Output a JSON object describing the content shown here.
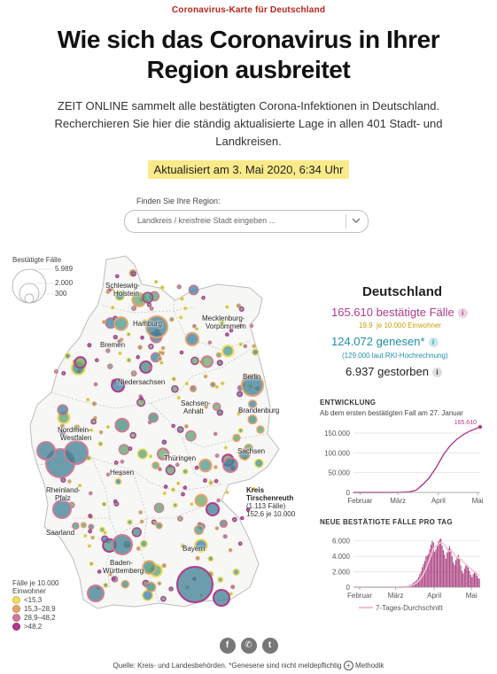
{
  "header": {
    "kicker": "Coronavirus-Karte für Deutschland",
    "headline_line1": "Wie sich das Coronavirus in Ihrer",
    "headline_line2": "Region ausbreitet",
    "lede_line1": "ZEIT ONLINE sammelt alle bestätigten Corona-Infektionen in Deutschland.",
    "lede_line2": "Recherchieren Sie hier die ständig aktualisierte Lage in allen 401 Stadt- und",
    "lede_line3": "Landkreisen.",
    "updated": "Aktualisiert am 3. Mai 2020, 6:34 Uhr"
  },
  "search": {
    "label": "Finden Sie Ihre Region:",
    "placeholder": "Landkreis / kreisfreie Stadt eingeben ..."
  },
  "size_legend": {
    "title": "Bestätigte Fälle",
    "values": [
      "5.989",
      "2.000",
      "300"
    ]
  },
  "color_legend": {
    "title_line1": "Fälle je 10.000",
    "title_line2": "Einwohner",
    "items": [
      {
        "label": "<15,3",
        "color": "#f4dc5c"
      },
      {
        "label": "15,3–28,9",
        "color": "#e8a36a"
      },
      {
        "label": "28,9–48,2",
        "color": "#d07a94"
      },
      {
        "label": ">48,2",
        "color": "#b03a8c"
      }
    ]
  },
  "map": {
    "labels": [
      {
        "id": "sh1",
        "text": "Schleswig-"
      },
      {
        "id": "sh2",
        "text": "Holstein"
      },
      {
        "id": "hh",
        "text": "Hamburg"
      },
      {
        "id": "mv1",
        "text": "Mecklenburg-"
      },
      {
        "id": "mv2",
        "text": "Vorpommern"
      },
      {
        "id": "hb",
        "text": "Bremen"
      },
      {
        "id": "ni",
        "text": "Niedersachsen"
      },
      {
        "id": "be",
        "text": "Berlin"
      },
      {
        "id": "st1",
        "text": "Sachsen-"
      },
      {
        "id": "st2",
        "text": "Anhalt"
      },
      {
        "id": "bb",
        "text": "Brandenburg"
      },
      {
        "id": "nw1",
        "text": "Nordrhein-"
      },
      {
        "id": "nw2",
        "text": "Westfalen"
      },
      {
        "id": "sn",
        "text": "Sachsen"
      },
      {
        "id": "th",
        "text": "Thüringen"
      },
      {
        "id": "he",
        "text": "Hessen"
      },
      {
        "id": "rp1",
        "text": "Rheinland-"
      },
      {
        "id": "rp2",
        "text": "Pfalz"
      },
      {
        "id": "sl",
        "text": "Saarland"
      },
      {
        "id": "by",
        "text": "Bayern"
      },
      {
        "id": "bw1",
        "text": "Baden-"
      },
      {
        "id": "bw2",
        "text": "Württemberg"
      }
    ],
    "callout": {
      "name_line1": "Kreis",
      "name_line2": "Tirschenreuth",
      "cases": "(1.113 Fälle)",
      "rate": "152,6 je 10.000"
    }
  },
  "stats": {
    "country": "Deutschland",
    "confirmed": "165.610 bestätigte Fälle",
    "confirmed_rate_value": "19,9",
    "confirmed_rate_unit": "je 10.000 Einwohner",
    "recovered": "124.072 genesen*",
    "recovered_note": "(129.000 laut RKI-Hochrechnung)",
    "deaths": "6.937 gestorben",
    "colors": {
      "confirmed": "#b03a8c",
      "recovered": "#1f8fa6",
      "deaths": "#222222",
      "rate": "#c8a000"
    }
  },
  "chart_data": [
    {
      "type": "area",
      "title": "ENTWICKLUNG",
      "subtitle": "Ab dem ersten bestätigten Fall am 27. Januar",
      "x_tick_labels": [
        "Februar",
        "März",
        "April",
        "Mai"
      ],
      "y_tick_labels": [
        "0",
        "50.000",
        "100.000",
        "150.000"
      ],
      "ylim": [
        0,
        165610
      ],
      "annotation": "165.610",
      "x_dates": [
        "2020-01-27",
        "2020-02-15",
        "2020-03-01",
        "2020-03-10",
        "2020-03-15",
        "2020-03-20",
        "2020-03-25",
        "2020-03-31",
        "2020-04-05",
        "2020-04-10",
        "2020-04-15",
        "2020-04-20",
        "2020-04-25",
        "2020-05-03"
      ],
      "values": [
        1,
        16,
        130,
        1500,
        5800,
        19800,
        37000,
        67000,
        96000,
        118000,
        134000,
        146000,
        155000,
        165610
      ],
      "color": "#b03a8c"
    },
    {
      "type": "bar",
      "title": "NEUE BESTÄTIGTE FÄLLE PRO TAG",
      "x_tick_labels": [
        "Februar",
        "März",
        "April",
        "Mai"
      ],
      "y_tick_labels": [
        "0",
        "2.000",
        "4.000",
        "6.000"
      ],
      "ylim": [
        0,
        7000
      ],
      "legend": "7-Tages-Durchschnitt",
      "values": [
        0,
        0,
        0,
        0,
        0,
        0,
        1,
        0,
        1,
        0,
        0,
        0,
        0,
        2,
        0,
        0,
        0,
        0,
        0,
        1,
        0,
        0,
        0,
        0,
        0,
        0,
        0,
        0,
        0,
        0,
        0,
        0,
        0,
        2,
        5,
        8,
        12,
        18,
        25,
        40,
        55,
        80,
        110,
        160,
        220,
        300,
        350,
        450,
        600,
        700,
        850,
        1000,
        1300,
        1700,
        2000,
        2600,
        3000,
        3400,
        4000,
        4100,
        4300,
        4900,
        5500,
        6000,
        5800,
        4600,
        4900,
        5300,
        5900,
        6200,
        6300,
        5400,
        4800,
        4200,
        3700,
        4500,
        5000,
        5300,
        4900,
        4000,
        3200,
        2900,
        3500,
        3900,
        4200,
        3700,
        2800,
        2100,
        1800,
        2400,
        2800,
        3000,
        2700,
        2100,
        1600,
        1300,
        1700,
        2100,
        1900,
        1500,
        1200,
        1100
      ],
      "avg": [
        0,
        0,
        0,
        0,
        0,
        0,
        0,
        0,
        0,
        0,
        0,
        0,
        0,
        0,
        0,
        0,
        0,
        0,
        0,
        0,
        0,
        0,
        0,
        0,
        0,
        0,
        0,
        0,
        0,
        0,
        0,
        0,
        0,
        1,
        2,
        4,
        7,
        10,
        14,
        21,
        30,
        43,
        61,
        87,
        120,
        165,
        212,
        280,
        355,
        440,
        540,
        660,
        810,
        1000,
        1220,
        1470,
        1760,
        2080,
        2460,
        2870,
        3320,
        3740,
        4170,
        4700,
        5050,
        5180,
        5330,
        5440,
        5620,
        5730,
        5790,
        5720,
        5650,
        5480,
        5240,
        4890,
        4730,
        4660,
        4690,
        4630,
        4460,
        4150,
        4000,
        3840,
        3750,
        3700,
        3620,
        3450,
        3250,
        3120,
        3000,
        2820,
        2620,
        2520,
        2380,
        2230,
        2110,
        2000,
        1880,
        1740,
        1600,
        1500
      ],
      "color": "#a0266f"
    }
  ],
  "footer": {
    "source": "Quelle: Kreis- und Landesbehörden. *Genesene sind nicht meldepflichtig",
    "method": "Methodik"
  }
}
